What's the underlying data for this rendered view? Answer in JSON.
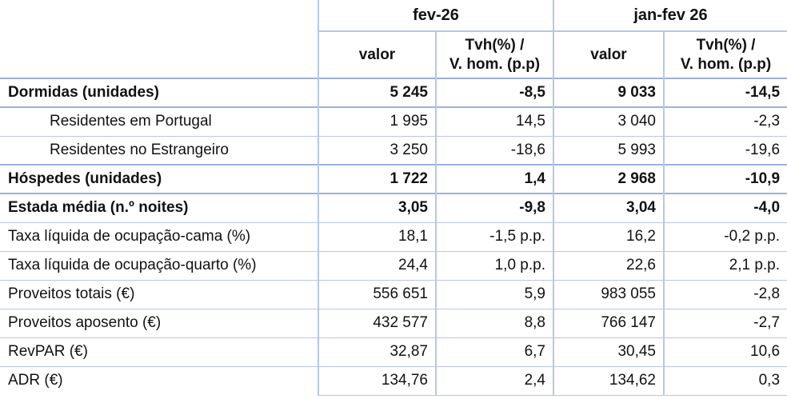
{
  "chart_data": {
    "type": "table",
    "column_groups": [
      {
        "label": "fev-26"
      },
      {
        "label": "jan-fev 26"
      }
    ],
    "sub_headers": {
      "valor": "valor",
      "tvh_line1": "Tvh(%) /",
      "tvh_line2": "V. hom. (p.p)"
    },
    "rows": [
      {
        "label": "Dormidas (unidades)",
        "bold": true,
        "indent": false,
        "values": [
          "5 245",
          "-8,5",
          "9 033",
          "-14,5"
        ]
      },
      {
        "label": "Residentes em Portugal",
        "bold": false,
        "indent": true,
        "values": [
          "1 995",
          "14,5",
          "3 040",
          "-2,3"
        ]
      },
      {
        "label": "Residentes no Estrangeiro",
        "bold": false,
        "indent": true,
        "values": [
          "3 250",
          "-18,6",
          "5 993",
          "-19,6"
        ]
      },
      {
        "label": "Hóspedes (unidades)",
        "bold": true,
        "indent": false,
        "values": [
          "1 722",
          "1,4",
          "2 968",
          "-10,9"
        ]
      },
      {
        "label": "Estada média (n.º noites)",
        "bold": true,
        "indent": false,
        "values": [
          "3,05",
          "-9,8",
          "3,04",
          "-4,0"
        ]
      },
      {
        "label": "Taxa líquida de ocupação-cama (%)",
        "bold": false,
        "indent": false,
        "values": [
          "18,1",
          "-1,5 p.p.",
          "16,2",
          "-0,2 p.p."
        ]
      },
      {
        "label": "Taxa líquida de ocupação-quarto (%)",
        "bold": false,
        "indent": false,
        "values": [
          "24,4",
          "1,0 p.p.",
          "22,6",
          "2,1 p.p."
        ]
      },
      {
        "label": "Proveitos totais (€)",
        "bold": false,
        "indent": false,
        "values": [
          "556 651",
          "5,9",
          "983 055",
          "-2,8"
        ]
      },
      {
        "label": "Proveitos aposento (€)",
        "bold": false,
        "indent": false,
        "values": [
          "432 577",
          "8,8",
          "766 147",
          "-2,7"
        ]
      },
      {
        "label": "RevPAR (€)",
        "bold": false,
        "indent": false,
        "values": [
          "32,87",
          "6,7",
          "30,45",
          "10,6"
        ]
      },
      {
        "label": "ADR (€)",
        "bold": false,
        "indent": false,
        "values": [
          "134,76",
          "2,4",
          "134,62",
          "0,3"
        ]
      }
    ],
    "colors": {
      "border_light": "#b7c7e8",
      "border_dark": "#9db2d8",
      "text": "#121212"
    }
  }
}
